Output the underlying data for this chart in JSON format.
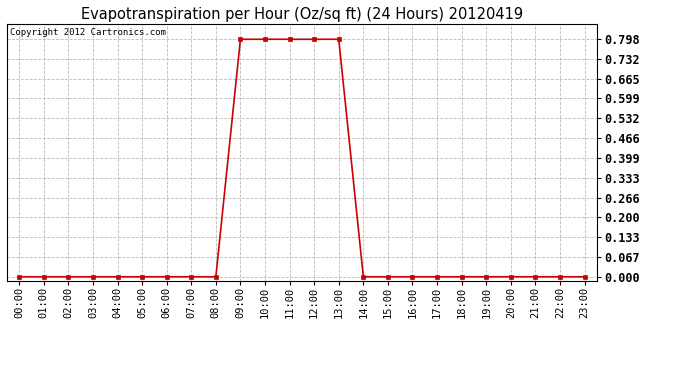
{
  "title": "Evapotranspiration per Hour (Oz/sq ft) (24 Hours) 20120419",
  "copyright_text": "Copyright 2012 Cartronics.com",
  "hours": [
    "00:00",
    "01:00",
    "02:00",
    "03:00",
    "04:00",
    "05:00",
    "06:00",
    "07:00",
    "08:00",
    "09:00",
    "10:00",
    "11:00",
    "12:00",
    "13:00",
    "14:00",
    "15:00",
    "16:00",
    "17:00",
    "18:00",
    "19:00",
    "20:00",
    "21:00",
    "22:00",
    "23:00"
  ],
  "values": [
    0.0,
    0.0,
    0.0,
    0.0,
    0.0,
    0.0,
    0.0,
    0.0,
    0.0,
    0.798,
    0.798,
    0.798,
    0.798,
    0.798,
    0.0,
    0.0,
    0.0,
    0.0,
    0.0,
    0.0,
    0.0,
    0.0,
    0.0,
    0.0
  ],
  "line_color": "#cc0000",
  "marker_color": "#cc0000",
  "bg_color": "#ffffff",
  "plot_bg_color": "#ffffff",
  "grid_color": "#bbbbbb",
  "title_fontsize": 10.5,
  "copyright_fontsize": 6.5,
  "tick_fontsize": 7.5,
  "ytick_fontsize": 8.5,
  "ylim_min": -0.015,
  "ylim_max": 0.848,
  "yticks": [
    0.0,
    0.067,
    0.133,
    0.2,
    0.266,
    0.333,
    0.399,
    0.466,
    0.532,
    0.599,
    0.665,
    0.732,
    0.798
  ]
}
